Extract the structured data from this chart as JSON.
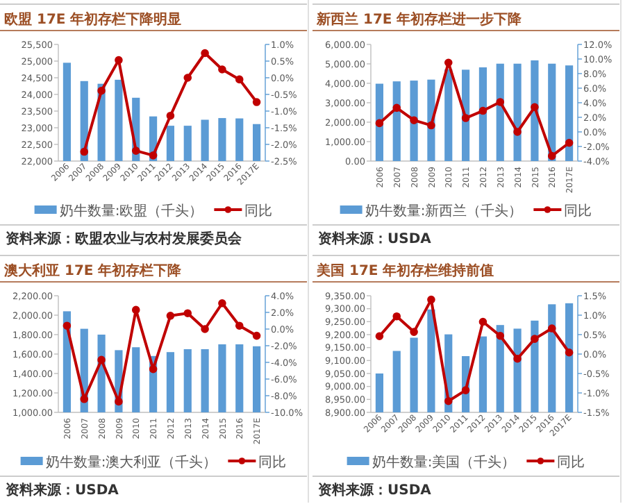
{
  "chart_data": [
    {
      "type": "bar",
      "title": "欧盟 17E 年初存栏下降明显",
      "categories": [
        "2006",
        "2007",
        "2008",
        "2009",
        "2010",
        "2011",
        "2012",
        "2013",
        "2014",
        "2015",
        "2016",
        "2017E"
      ],
      "series": [
        {
          "name": "奶牛数量:欧盟（千头）",
          "type": "bar",
          "color": "#5b9bd5",
          "values": [
            24950,
            24400,
            24320,
            24440,
            23900,
            23340,
            23060,
            23060,
            23240,
            23290,
            23280,
            23110
          ]
        },
        {
          "name": "同比",
          "type": "line",
          "axis": "y2",
          "color": "#c00000",
          "marker": "circle",
          "values": [
            null,
            -2.22,
            -0.39,
            0.53,
            -2.19,
            -2.33,
            -1.14,
            0.0,
            0.74,
            0.25,
            -0.05,
            -0.73
          ]
        }
      ],
      "ylim": [
        22000,
        25500
      ],
      "yticks": [
        {
          "value": 22000,
          "label": "22,000"
        },
        {
          "value": 22500,
          "label": "22,500"
        },
        {
          "value": 23000,
          "label": "23,000"
        },
        {
          "value": 23500,
          "label": "23,500"
        },
        {
          "value": 24000,
          "label": "24,000"
        },
        {
          "value": 24500,
          "label": "24,500"
        },
        {
          "value": 25000,
          "label": "25,000"
        },
        {
          "value": 25500,
          "label": "25,500"
        }
      ],
      "y2lim": [
        -2.5,
        1.0
      ],
      "y2ticks": [
        {
          "value": -2.5,
          "label": "-2.5%"
        },
        {
          "value": -2.0,
          "label": "-2.0%"
        },
        {
          "value": -1.5,
          "label": "-1.5%"
        },
        {
          "value": -1.0,
          "label": "-1.0%"
        },
        {
          "value": -0.5,
          "label": "-0.5%"
        },
        {
          "value": 0,
          "label": "0.0%"
        },
        {
          "value": 0.5,
          "label": "0.5%"
        },
        {
          "value": 1.0,
          "label": "1.0%"
        }
      ],
      "legend": "bottom",
      "annotations": [
        "资料来源：欧盟农业与农村发展委员会"
      ]
    },
    {
      "type": "bar",
      "title": "新西兰 17E 年初存栏进一步下降",
      "categories": [
        "2006",
        "2007",
        "2008",
        "2009",
        "2010",
        "2011",
        "2012",
        "2013",
        "2014",
        "2015",
        "2016",
        "2017E"
      ],
      "series": [
        {
          "name": "奶牛数量:新西兰（千头）",
          "type": "bar",
          "color": "#5b9bd5",
          "values": [
            3980,
            4100,
            4140,
            4190,
            4720,
            4700,
            4820,
            5010,
            5010,
            5180,
            5010,
            4920
          ]
        },
        {
          "name": "同比",
          "type": "line",
          "axis": "y2",
          "color": "#c00000",
          "marker": "circle",
          "values": [
            1.2,
            3.3,
            1.6,
            0.9,
            9.5,
            1.9,
            2.9,
            4.1,
            0.0,
            3.4,
            -3.3,
            -1.5
          ]
        }
      ],
      "ylim": [
        0,
        6000
      ],
      "yticks": [
        {
          "value": 0,
          "label": "0.00"
        },
        {
          "value": 1000,
          "label": "1,000.00"
        },
        {
          "value": 2000,
          "label": "2,000.00"
        },
        {
          "value": 3000,
          "label": "3,000.00"
        },
        {
          "value": 4000,
          "label": "4,000.00"
        },
        {
          "value": 5000,
          "label": "5,000.00"
        },
        {
          "value": 6000,
          "label": "6,000.00"
        }
      ],
      "y2lim": [
        -4,
        12
      ],
      "y2ticks": [
        {
          "value": -4,
          "label": "-4.0%"
        },
        {
          "value": -2,
          "label": "-2.0%"
        },
        {
          "value": 0,
          "label": "0.0%"
        },
        {
          "value": 2,
          "label": "2.0%"
        },
        {
          "value": 4,
          "label": "4.0%"
        },
        {
          "value": 6,
          "label": "6.0%"
        },
        {
          "value": 8,
          "label": "8.0%"
        },
        {
          "value": 10,
          "label": "10.0%"
        },
        {
          "value": 12,
          "label": "12.0%"
        }
      ],
      "legend": "bottom",
      "annotations": [
        "资料来源：USDA"
      ]
    },
    {
      "type": "bar",
      "title": "澳大利亚 17E 年初存栏下降",
      "categories": [
        "2006",
        "2007",
        "2008",
        "2009",
        "2010",
        "2011",
        "2012",
        "2013",
        "2014",
        "2015",
        "2016",
        "2017E"
      ],
      "series": [
        {
          "name": "奶牛数量:澳大利亚（千头）",
          "type": "bar",
          "color": "#5b9bd5",
          "values": [
            2040,
            1860,
            1800,
            1640,
            1670,
            1580,
            1620,
            1650,
            1650,
            1700,
            1700,
            1680
          ]
        },
        {
          "name": "同比",
          "type": "line",
          "axis": "y2",
          "color": "#c00000",
          "marker": "circle",
          "values": [
            0.4,
            -8.4,
            -3.7,
            -8.7,
            2.3,
            -4.8,
            1.6,
            1.9,
            0.0,
            3.1,
            0.4,
            -0.8
          ]
        }
      ],
      "ylim": [
        1000,
        2200
      ],
      "yticks": [
        {
          "value": 1000,
          "label": "1,000.00"
        },
        {
          "value": 1200,
          "label": "1,200.00"
        },
        {
          "value": 1400,
          "label": "1,400.00"
        },
        {
          "value": 1600,
          "label": "1,600.00"
        },
        {
          "value": 1800,
          "label": "1,800.00"
        },
        {
          "value": 2000,
          "label": "2,000.00"
        },
        {
          "value": 2200,
          "label": "2,200.00"
        }
      ],
      "y2lim": [
        -10,
        4
      ],
      "y2ticks": [
        {
          "value": -10,
          "label": "-10.0%"
        },
        {
          "value": -8,
          "label": "-8.0%"
        },
        {
          "value": -6,
          "label": "-6.0%"
        },
        {
          "value": -4,
          "label": "-4.0%"
        },
        {
          "value": -2,
          "label": "-2.0%"
        },
        {
          "value": 0,
          "label": "0.0%"
        },
        {
          "value": 2,
          "label": "2.0%"
        },
        {
          "value": 4,
          "label": "4.0%"
        }
      ],
      "legend": "bottom",
      "annotations": [
        "资料来源：USDA"
      ]
    },
    {
      "type": "bar",
      "title": "美国 17E 年初存栏维持前值",
      "categories": [
        "2006",
        "2007",
        "2008",
        "2009",
        "2010",
        "2011",
        "2012",
        "2013",
        "2014",
        "2015",
        "2016",
        "2017E"
      ],
      "series": [
        {
          "name": "奶牛数量:美国（千头）",
          "type": "bar",
          "color": "#5b9bd5",
          "values": [
            9050,
            9137,
            9188,
            9297,
            9201,
            9117,
            9193,
            9237,
            9223,
            9254,
            9317,
            9321
          ]
        },
        {
          "name": "同比",
          "type": "line",
          "axis": "y2",
          "color": "#c00000",
          "marker": "circle",
          "values": [
            0.46,
            0.97,
            0.57,
            1.4,
            -1.21,
            -0.93,
            0.83,
            0.47,
            -0.12,
            0.39,
            0.66,
            0.04
          ]
        }
      ],
      "ylim": [
        8900,
        9350
      ],
      "yticks": [
        {
          "value": 8900,
          "label": "8,900.00"
        },
        {
          "value": 8950,
          "label": "8,950.00"
        },
        {
          "value": 9000,
          "label": "9,000.00"
        },
        {
          "value": 9050,
          "label": "9,050.00"
        },
        {
          "value": 9100,
          "label": "9,100.00"
        },
        {
          "value": 9150,
          "label": "9,150.00"
        },
        {
          "value": 9200,
          "label": "9,200.00"
        },
        {
          "value": 9250,
          "label": "9,250.00"
        },
        {
          "value": 9300,
          "label": "9,300.00"
        },
        {
          "value": 9350,
          "label": "9,350.00"
        }
      ],
      "y2lim": [
        -1.5,
        1.5
      ],
      "y2ticks": [
        {
          "value": -1.5,
          "label": "-1.5%"
        },
        {
          "value": -1.0,
          "label": "-1.0%"
        },
        {
          "value": -0.5,
          "label": "-0.5%"
        },
        {
          "value": 0,
          "label": "0.0%"
        },
        {
          "value": 0.5,
          "label": "0.5%"
        },
        {
          "value": 1.0,
          "label": "1.0%"
        },
        {
          "value": 1.5,
          "label": "1.5%"
        }
      ],
      "legend": "bottom",
      "annotations": [
        "资料来源：USDA"
      ]
    }
  ]
}
